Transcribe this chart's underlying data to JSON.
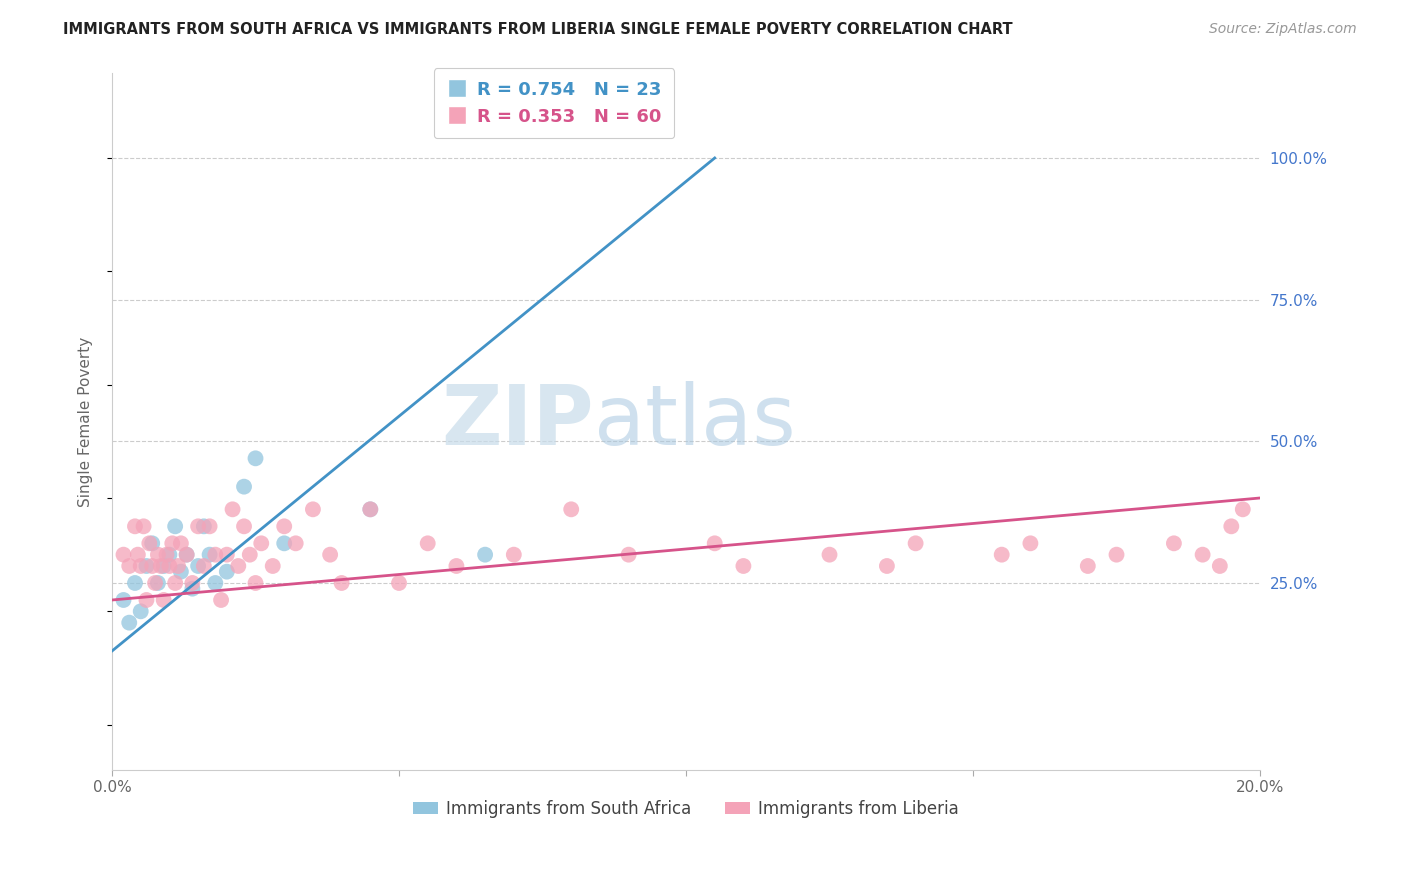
{
  "title": "IMMIGRANTS FROM SOUTH AFRICA VS IMMIGRANTS FROM LIBERIA SINGLE FEMALE POVERTY CORRELATION CHART",
  "source": "Source: ZipAtlas.com",
  "ylabel": "Single Female Poverty",
  "xlim": [
    0.0,
    20.0
  ],
  "ylim": [
    -8.0,
    115.0
  ],
  "right_yticks": [
    0,
    25,
    50,
    75,
    100
  ],
  "right_yticklabels": [
    "",
    "25.0%",
    "50.0%",
    "75.0%",
    "100.0%"
  ],
  "blue_label": "Immigrants from South Africa",
  "pink_label": "Immigrants from Liberia",
  "blue_R": "R = 0.754",
  "blue_N": "N = 23",
  "pink_R": "R = 0.353",
  "pink_N": "N = 60",
  "blue_color": "#92c5de",
  "pink_color": "#f4a3b8",
  "blue_line_color": "#4292c6",
  "pink_line_color": "#d6538a",
  "watermark_zip": "ZIP",
  "watermark_atlas": "atlas",
  "blue_scatter_x": [
    0.2,
    0.3,
    0.4,
    0.5,
    0.6,
    0.7,
    0.8,
    0.9,
    1.0,
    1.1,
    1.2,
    1.3,
    1.4,
    1.5,
    1.6,
    1.7,
    1.8,
    2.0,
    2.3,
    2.5,
    3.0,
    4.5,
    6.5
  ],
  "blue_scatter_y": [
    22,
    18,
    25,
    20,
    28,
    32,
    25,
    28,
    30,
    35,
    27,
    30,
    24,
    28,
    35,
    30,
    25,
    27,
    42,
    47,
    32,
    38,
    30
  ],
  "pink_scatter_x": [
    0.2,
    0.3,
    0.4,
    0.45,
    0.5,
    0.55,
    0.6,
    0.65,
    0.7,
    0.75,
    0.8,
    0.85,
    0.9,
    0.95,
    1.0,
    1.05,
    1.1,
    1.15,
    1.2,
    1.3,
    1.4,
    1.5,
    1.6,
    1.7,
    1.8,
    1.9,
    2.0,
    2.1,
    2.2,
    2.3,
    2.4,
    2.5,
    2.6,
    2.8,
    3.0,
    3.2,
    3.5,
    3.8,
    4.0,
    4.5,
    5.0,
    5.5,
    6.0,
    7.0,
    8.0,
    9.0,
    10.5,
    11.0,
    12.5,
    13.5,
    14.0,
    15.5,
    16.0,
    17.0,
    17.5,
    18.5,
    19.0,
    19.3,
    19.5,
    19.7
  ],
  "pink_scatter_y": [
    30,
    28,
    35,
    30,
    28,
    35,
    22,
    32,
    28,
    25,
    30,
    28,
    22,
    30,
    28,
    32,
    25,
    28,
    32,
    30,
    25,
    35,
    28,
    35,
    30,
    22,
    30,
    38,
    28,
    35,
    30,
    25,
    32,
    28,
    35,
    32,
    38,
    30,
    25,
    38,
    25,
    32,
    28,
    30,
    38,
    30,
    32,
    28,
    30,
    28,
    32,
    30,
    32,
    28,
    30,
    32,
    30,
    28,
    35,
    38
  ],
  "blue_line_x": [
    0.0,
    10.5
  ],
  "blue_line_y": [
    13.0,
    100.0
  ],
  "pink_line_x": [
    0.0,
    20.0
  ],
  "pink_line_y": [
    22.0,
    40.0
  ]
}
